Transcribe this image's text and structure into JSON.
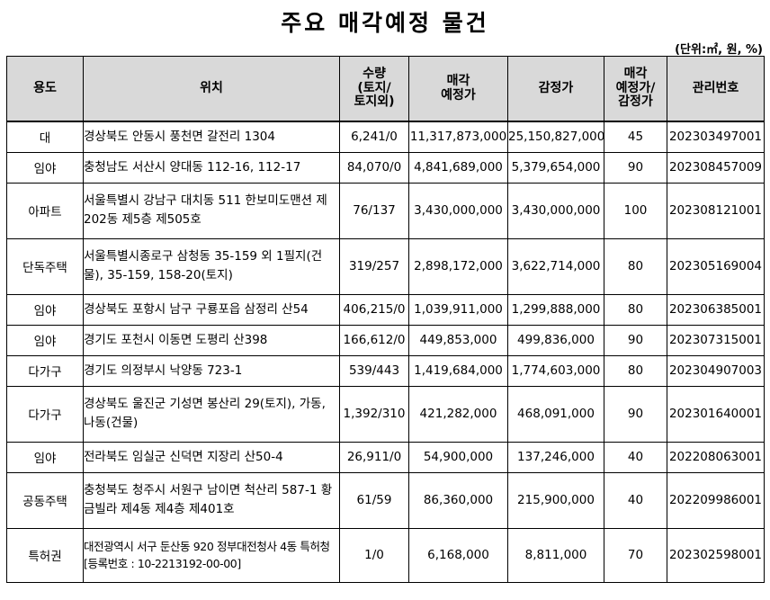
{
  "title": "주요 매각예정 물건",
  "unit_note": "(단위:㎡, 원, %)",
  "headers": {
    "use": "용도",
    "location": "위치",
    "qty_line1": "수량",
    "qty_line2": "(토지/",
    "qty_line3": "토지외)",
    "price_line1": "매각",
    "price_line2": "예정가",
    "appraisal": "감정가",
    "ratio_line1": "매각",
    "ratio_line2": "예정가/",
    "ratio_line3": "감정가",
    "mgmt": "관리번호"
  },
  "rows": [
    {
      "use": "대",
      "location": "경상북도 안동시 풍천면 갈전리 1304",
      "qty": "6,241/0",
      "sale_price": "11,317,873,000",
      "appraisal": "25,150,827,000",
      "ratio": "45",
      "mgmt_no": "202303497001"
    },
    {
      "use": "임야",
      "location": "충청남도 서산시 양대동 112-16, 112-17",
      "qty": "84,070/0",
      "sale_price": "4,841,689,000",
      "appraisal": "5,379,654,000",
      "ratio": "90",
      "mgmt_no": "202308457009"
    },
    {
      "use": "아파트",
      "location": "서울특별시 강남구 대치동 511 한보미도맨션 제202동 제5층 제505호",
      "qty": "76/137",
      "sale_price": "3,430,000,000",
      "appraisal": "3,430,000,000",
      "ratio": "100",
      "mgmt_no": "202308121001"
    },
    {
      "use": "단독주택",
      "location": "서울특별시종로구 삼청동 35-159 외 1필지(건물), 35-159, 158-20(토지)",
      "qty": "319/257",
      "sale_price": "2,898,172,000",
      "appraisal": "3,622,714,000",
      "ratio": "80",
      "mgmt_no": "202305169004"
    },
    {
      "use": "임야",
      "location": "경상북도 포항시 남구 구룡포읍 삼정리 산54",
      "qty": "406,215/0",
      "sale_price": "1,039,911,000",
      "appraisal": "1,299,888,000",
      "ratio": "80",
      "mgmt_no": "202306385001"
    },
    {
      "use": "임야",
      "location": "경기도 포천시 이동면 도평리 산398",
      "qty": "166,612/0",
      "sale_price": "449,853,000",
      "appraisal": "499,836,000",
      "ratio": "90",
      "mgmt_no": "202307315001"
    },
    {
      "use": "다가구",
      "location": "경기도 의정부시 낙양동 723-1",
      "qty": "539/443",
      "sale_price": "1,419,684,000",
      "appraisal": "1,774,603,000",
      "ratio": "80",
      "mgmt_no": "202304907003"
    },
    {
      "use": "다가구",
      "location": "경상북도 울진군 기성면 봉산리 29(토지), 가동, 나동(건물)",
      "qty": "1,392/310",
      "sale_price": "421,282,000",
      "appraisal": "468,091,000",
      "ratio": "90",
      "mgmt_no": "202301640001"
    },
    {
      "use": "임야",
      "location": "전라북도 임실군 신덕면 지장리 산50-4",
      "qty": "26,911/0",
      "sale_price": "54,900,000",
      "appraisal": "137,246,000",
      "ratio": "40",
      "mgmt_no": "202208063001"
    },
    {
      "use": "공동주택",
      "location": "충청북도 청주시 서원구 남이면 척산리 587-1 황금빌라 제4동 제4층 제401호",
      "qty": "61/59",
      "sale_price": "86,360,000",
      "appraisal": "215,900,000",
      "ratio": "40",
      "mgmt_no": "202209986001"
    },
    {
      "use": "특허권",
      "location": "대전광역시 서구 둔산동 920 정부대전청사 4동 특허청[등록번호 : 10-2213192-00-00]",
      "qty": "1/0",
      "sale_price": "6,168,000",
      "appraisal": "8,811,000",
      "ratio": "70",
      "mgmt_no": "202302598001"
    }
  ]
}
